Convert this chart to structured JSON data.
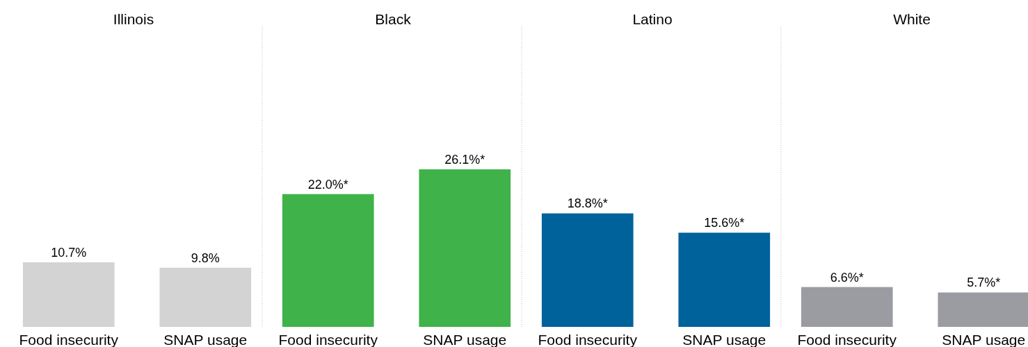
{
  "chart_data": [
    {
      "type": "bar",
      "title": "Illinois",
      "categories": [
        "Food insecurity",
        "SNAP usage"
      ],
      "values": [
        10.7,
        9.8
      ],
      "colors": [
        "#d3d3d3",
        "#d3d3d3"
      ],
      "value_labels": [
        "10.7%",
        "9.8%"
      ]
    },
    {
      "type": "bar",
      "title": "Black",
      "categories": [
        "Food insecurity",
        "SNAP usage"
      ],
      "values": [
        22.0,
        26.1
      ],
      "colors": [
        "#3fb24a",
        "#3fb24a"
      ],
      "value_labels": [
        "22.0%*",
        "26.1%*"
      ]
    },
    {
      "type": "bar",
      "title": "Latino",
      "categories": [
        "Food insecurity",
        "SNAP usage"
      ],
      "values": [
        18.8,
        15.6
      ],
      "colors": [
        "#00629b",
        "#00629b"
      ],
      "value_labels": [
        "18.8%*",
        "15.6%*"
      ]
    },
    {
      "type": "bar",
      "title": "White",
      "categories": [
        "Food insecurity",
        "SNAP usage"
      ],
      "values": [
        6.6,
        5.7
      ],
      "colors": [
        "#9a9ca1",
        "#9a9ca1"
      ],
      "value_labels": [
        "6.6%*",
        "5.7%*"
      ]
    }
  ]
}
